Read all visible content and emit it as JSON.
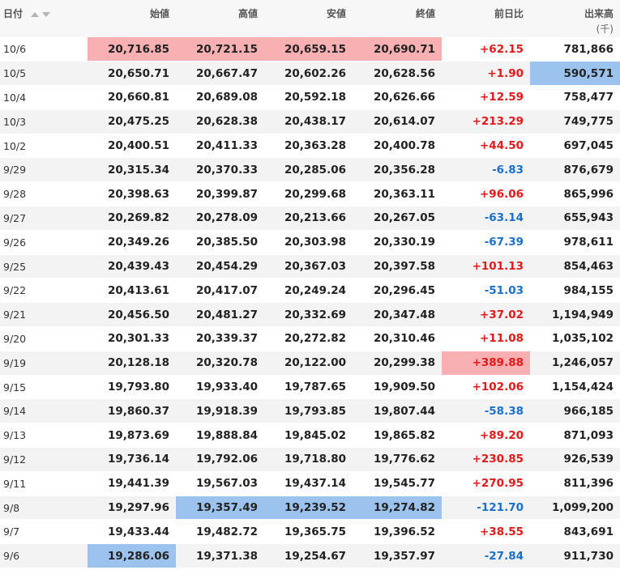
{
  "headers": {
    "date": "日付",
    "open": "始値",
    "high": "高値",
    "low": "安値",
    "close": "終値",
    "change": "前日比",
    "volume": "出来高",
    "volume_unit": "(千)"
  },
  "colors": {
    "positive": "#e0191b",
    "negative": "#1a6fc9",
    "highlight_high": "#f9b0b3",
    "highlight_low": "#9cc2ee"
  },
  "rows": [
    {
      "date": "10/6",
      "open": "20,716.85",
      "high": "20,721.15",
      "low": "20,659.15",
      "close": "20,690.71",
      "change": "+62.15",
      "volume": "781,866",
      "hl": {
        "open": "red",
        "high": "red",
        "low": "red",
        "close": "red"
      }
    },
    {
      "date": "10/5",
      "open": "20,650.71",
      "high": "20,667.47",
      "low": "20,602.26",
      "close": "20,628.56",
      "change": "+1.90",
      "volume": "590,571",
      "hl": {
        "volume": "blue"
      }
    },
    {
      "date": "10/4",
      "open": "20,660.81",
      "high": "20,689.08",
      "low": "20,592.18",
      "close": "20,626.66",
      "change": "+12.59",
      "volume": "758,477",
      "hl": {}
    },
    {
      "date": "10/3",
      "open": "20,475.25",
      "high": "20,628.38",
      "low": "20,438.17",
      "close": "20,614.07",
      "change": "+213.29",
      "volume": "749,775",
      "hl": {}
    },
    {
      "date": "10/2",
      "open": "20,400.51",
      "high": "20,411.33",
      "low": "20,363.28",
      "close": "20,400.78",
      "change": "+44.50",
      "volume": "697,045",
      "hl": {}
    },
    {
      "date": "9/29",
      "open": "20,315.34",
      "high": "20,370.33",
      "low": "20,285.06",
      "close": "20,356.28",
      "change": "-6.83",
      "volume": "876,679",
      "hl": {}
    },
    {
      "date": "9/28",
      "open": "20,398.63",
      "high": "20,399.87",
      "low": "20,299.68",
      "close": "20,363.11",
      "change": "+96.06",
      "volume": "865,996",
      "hl": {}
    },
    {
      "date": "9/27",
      "open": "20,269.82",
      "high": "20,278.09",
      "low": "20,213.66",
      "close": "20,267.05",
      "change": "-63.14",
      "volume": "655,943",
      "hl": {}
    },
    {
      "date": "9/26",
      "open": "20,349.26",
      "high": "20,385.50",
      "low": "20,303.98",
      "close": "20,330.19",
      "change": "-67.39",
      "volume": "978,611",
      "hl": {}
    },
    {
      "date": "9/25",
      "open": "20,439.43",
      "high": "20,454.29",
      "low": "20,367.03",
      "close": "20,397.58",
      "change": "+101.13",
      "volume": "854,463",
      "hl": {}
    },
    {
      "date": "9/22",
      "open": "20,413.61",
      "high": "20,417.07",
      "low": "20,249.24",
      "close": "20,296.45",
      "change": "-51.03",
      "volume": "984,155",
      "hl": {}
    },
    {
      "date": "9/21",
      "open": "20,456.50",
      "high": "20,481.27",
      "low": "20,332.69",
      "close": "20,347.48",
      "change": "+37.02",
      "volume": "1,194,949",
      "hl": {}
    },
    {
      "date": "9/20",
      "open": "20,301.33",
      "high": "20,339.37",
      "low": "20,272.82",
      "close": "20,310.46",
      "change": "+11.08",
      "volume": "1,035,102",
      "hl": {}
    },
    {
      "date": "9/19",
      "open": "20,128.18",
      "high": "20,320.78",
      "low": "20,122.00",
      "close": "20,299.38",
      "change": "+389.88",
      "volume": "1,246,057",
      "hl": {
        "change": "red"
      }
    },
    {
      "date": "9/15",
      "open": "19,793.80",
      "high": "19,933.40",
      "low": "19,787.65",
      "close": "19,909.50",
      "change": "+102.06",
      "volume": "1,154,424",
      "hl": {}
    },
    {
      "date": "9/14",
      "open": "19,860.37",
      "high": "19,918.39",
      "low": "19,793.85",
      "close": "19,807.44",
      "change": "-58.38",
      "volume": "966,185",
      "hl": {}
    },
    {
      "date": "9/13",
      "open": "19,873.69",
      "high": "19,888.84",
      "low": "19,845.02",
      "close": "19,865.82",
      "change": "+89.20",
      "volume": "871,093",
      "hl": {}
    },
    {
      "date": "9/12",
      "open": "19,736.14",
      "high": "19,792.06",
      "low": "19,718.80",
      "close": "19,776.62",
      "change": "+230.85",
      "volume": "926,539",
      "hl": {}
    },
    {
      "date": "9/11",
      "open": "19,441.39",
      "high": "19,567.03",
      "low": "19,437.14",
      "close": "19,545.77",
      "change": "+270.95",
      "volume": "811,396",
      "hl": {}
    },
    {
      "date": "9/8",
      "open": "19,297.96",
      "high": "19,357.49",
      "low": "19,239.52",
      "close": "19,274.82",
      "change": "-121.70",
      "volume": "1,099,200",
      "hl": {
        "high": "blue",
        "low": "blue",
        "close": "blue"
      }
    },
    {
      "date": "9/7",
      "open": "19,433.44",
      "high": "19,482.72",
      "low": "19,365.75",
      "close": "19,396.52",
      "change": "+38.55",
      "volume": "843,691",
      "hl": {}
    },
    {
      "date": "9/6",
      "open": "19,286.06",
      "high": "19,371.38",
      "low": "19,254.67",
      "close": "19,357.97",
      "change": "-27.84",
      "volume": "911,730",
      "hl": {
        "open": "blue"
      }
    }
  ]
}
